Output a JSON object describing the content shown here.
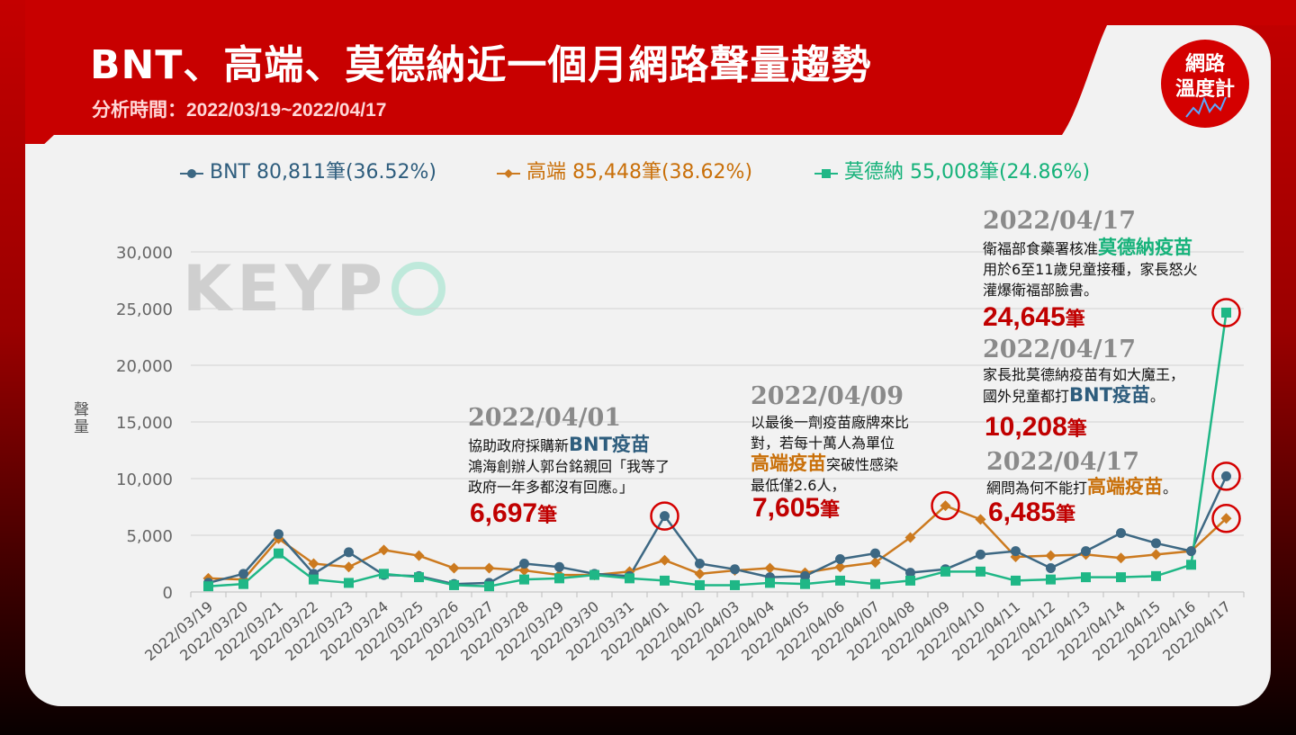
{
  "header": {
    "title": "BNT、高端、莫德納近一個月網路聲量趨勢",
    "subtitle": "分析時間：2022/03/19~2022/04/17",
    "badge_line1": "網路",
    "badge_line2": "溫度計",
    "watermark": "KEYP"
  },
  "colors": {
    "bnt": "#3d6883",
    "gao": "#cc7a1f",
    "mod": "#1fb786",
    "title_red": "#c00000",
    "circle": "#d40000"
  },
  "legend": [
    {
      "series": "bnt",
      "label": "BNT 80,811筆(36.52%)"
    },
    {
      "series": "gao",
      "label": "高端 85,448筆(38.62%)"
    },
    {
      "series": "mod",
      "label": "莫德納 55,008筆(24.86%)"
    }
  ],
  "annotations": {
    "a1": {
      "date": "2022/04/01",
      "line1_pre": "協助政府採購新",
      "line1_hl": "BNT疫苗",
      "line2": "鴻海創辦人郭台銘親回「我等了",
      "line3": "政府一年多都沒有回應。」",
      "count": "6,697",
      "unit": "筆"
    },
    "a2": {
      "date": "2022/04/09",
      "line1": "以最後一劑疫苗廠牌來比",
      "line2": "對，若每十萬人為單位",
      "line3_hl": "高端疫苗",
      "line3_post": "突破性感染",
      "line4": "最低僅2.6人，",
      "count": "7,605",
      "unit": "筆"
    },
    "a3": {
      "date": "2022/04/17",
      "line1_pre": "衛福部食藥署核准",
      "line1_hl": "莫德納疫苗",
      "line2": "用於6至11歲兒童接種，家長怒火",
      "line3": "灌爆衛福部臉書。",
      "count": "24,645",
      "unit": "筆"
    },
    "a4": {
      "date": "2022/04/17",
      "line1": "家長批莫德納疫苗有如大魔王，",
      "line2_pre": "國外兒童都打",
      "line2_hl": "BNT疫苗",
      "line2_post": "。",
      "count": "10,208",
      "unit": "筆"
    },
    "a5": {
      "date": "2022/04/17",
      "line1_pre": "網問為何不能打",
      "line1_hl": "高端疫苗",
      "line1_post": "。",
      "count": "6,485",
      "unit": "筆"
    }
  },
  "chart_data": {
    "type": "line",
    "title": "BNT、高端、莫德納近一個月網路聲量趨勢",
    "xlabel": "",
    "ylabel": "聲量",
    "ylim": [
      0,
      30000
    ],
    "yticks": [
      0,
      5000,
      10000,
      15000,
      20000,
      25000,
      30000
    ],
    "ytick_labels": [
      "0",
      "5,000",
      "10,000",
      "15,000",
      "20,000",
      "25,000",
      "30,000"
    ],
    "grid": true,
    "legend_position": "top",
    "x": [
      "2022/03/19",
      "2022/03/20",
      "2022/03/21",
      "2022/03/22",
      "2022/03/23",
      "2022/03/24",
      "2022/03/25",
      "2022/03/26",
      "2022/03/27",
      "2022/03/28",
      "2022/03/29",
      "2022/03/30",
      "2022/03/31",
      "2022/04/01",
      "2022/04/02",
      "2022/04/03",
      "2022/04/04",
      "2022/04/05",
      "2022/04/06",
      "2022/04/07",
      "2022/04/08",
      "2022/04/09",
      "2022/04/10",
      "2022/04/11",
      "2022/04/12",
      "2022/04/13",
      "2022/04/14",
      "2022/04/15",
      "2022/04/16",
      "2022/04/17"
    ],
    "series": [
      {
        "name": "BNT",
        "key": "bnt",
        "marker": "circle",
        "values": [
          800,
          1600,
          5100,
          1600,
          3500,
          1500,
          1400,
          700,
          800,
          2500,
          2200,
          1600,
          1400,
          6697,
          2500,
          2000,
          1300,
          1400,
          2900,
          3400,
          1700,
          2000,
          3300,
          3600,
          2100,
          3600,
          5200,
          4300,
          3600,
          10208
        ]
      },
      {
        "name": "高端",
        "key": "gao",
        "marker": "diamond",
        "values": [
          1200,
          1100,
          4700,
          2500,
          2200,
          3700,
          3200,
          2100,
          2100,
          1900,
          1500,
          1500,
          1800,
          2800,
          1600,
          1900,
          2100,
          1700,
          2200,
          2600,
          4800,
          7605,
          6400,
          3100,
          3200,
          3300,
          3000,
          3300,
          3600,
          6485
        ]
      },
      {
        "name": "莫德納",
        "key": "mod",
        "marker": "square",
        "values": [
          500,
          700,
          3400,
          1100,
          800,
          1600,
          1300,
          600,
          500,
          1100,
          1200,
          1500,
          1200,
          1000,
          600,
          600,
          800,
          700,
          1000,
          700,
          1000,
          1800,
          1800,
          1000,
          1100,
          1300,
          1300,
          1400,
          2400,
          24645
        ]
      }
    ]
  }
}
